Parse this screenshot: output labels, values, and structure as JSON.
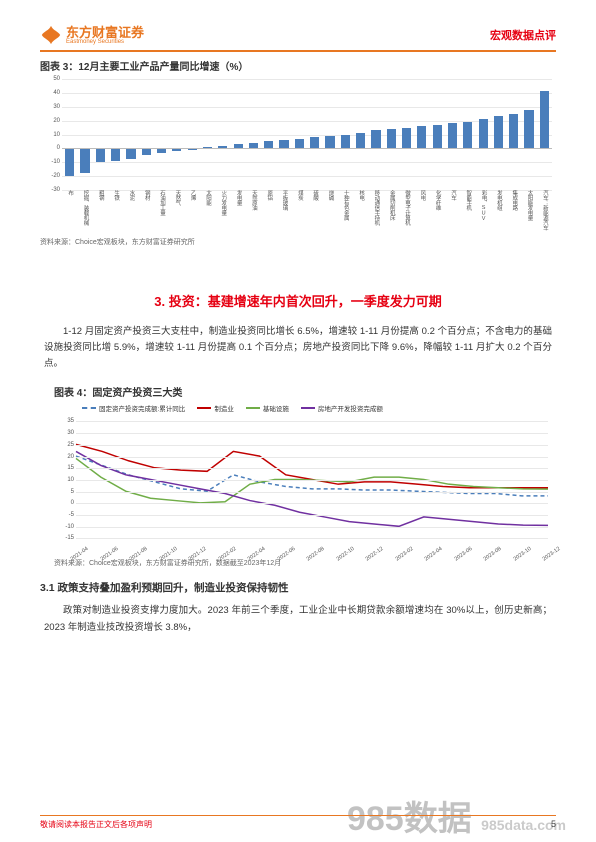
{
  "header": {
    "logo_cn": "东方财富证券",
    "logo_en": "Eastmoney Securities",
    "right": "宏观数据点评"
  },
  "chart3": {
    "title": "图表 3：12月主要工业产品产量同比增速（%）",
    "source": "资料来源：Choice宏观板块，东方财富证券研究所",
    "ylim": [
      -30,
      50
    ],
    "ytick_step": 10,
    "bar_color": "#4a7ebb",
    "grid_color": "#e8e8e8",
    "categories": [
      "布",
      "挖掘、装载机械",
      "粗钢",
      "生铁",
      "水泥",
      "钢材",
      "石油加工量",
      "天然气",
      "乙烯",
      "太阳能",
      "火力发电量",
      "发电量",
      "天然原油",
      "原铝",
      "平板玻璃",
      "煤炭",
      "硫酸",
      "烧碱",
      "十种有色金属",
      "核电",
      "移动通信手持机",
      "金属切削机床",
      "微型电子计算机",
      "风电",
      "化学纤维",
      "汽车",
      "智能手机",
      "彩电、SUV",
      "发电机组",
      "集成电路",
      "太阳能发电量",
      "汽车：新能源汽车"
    ],
    "values": [
      -20,
      -18,
      -10,
      -9,
      -8,
      -5,
      -3,
      -2,
      -1,
      1,
      2,
      3,
      4,
      5,
      6,
      7,
      8,
      9,
      10,
      11,
      13,
      14,
      15,
      16,
      17,
      18,
      19,
      21,
      23,
      25,
      28,
      41
    ]
  },
  "section3": {
    "heading": "3. 投资：基建增速年内首次回升，一季度发力可期",
    "para1": "1-12 月固定资产投资三大支柱中，制造业投资同比增长 6.5%，增速较 1-11 月份提高 0.2 个百分点；不含电力的基础设施投资同比增 5.9%，增速较 1-11 月份提高 0.1 个百分点；房地产投资同比下降 9.6%，降幅较 1-11 月扩大 0.2 个百分点。"
  },
  "chart4": {
    "title": "图表 4：固定资产投资三大类",
    "source": "资料来源：Choice宏观板块，东方财富证券研究所，数据截至2023年12月",
    "ylim": [
      -15,
      35
    ],
    "ytick_step": 5,
    "grid_color": "#e8e8e8",
    "legend": [
      {
        "label": "固定资产投资完成额:累计同比",
        "color": "#4a7ebb",
        "dash": "4,3"
      },
      {
        "label": "制造业",
        "color": "#c00000",
        "dash": ""
      },
      {
        "label": "基础设施",
        "color": "#70ad47",
        "dash": ""
      },
      {
        "label": "房地产开发投资完成额",
        "color": "#7030a0",
        "dash": ""
      }
    ],
    "x_labels": [
      "2021-04",
      "2021-06",
      "2021-08",
      "2021-10",
      "2021-12",
      "2022-02",
      "2022-04",
      "2022-06",
      "2022-08",
      "2022-10",
      "2022-12",
      "2023-02",
      "2023-04",
      "2023-06",
      "2023-08",
      "2023-10",
      "2023-12"
    ],
    "series": {
      "fixed": [
        20,
        16,
        12,
        9,
        6,
        5,
        12,
        9,
        7,
        6,
        6,
        5.5,
        5.5,
        5,
        4.5,
        4,
        4,
        3,
        3
      ],
      "mfg": [
        25,
        22,
        18,
        15,
        14,
        13.5,
        22,
        20,
        12,
        10,
        8,
        9,
        9,
        8,
        7,
        6.5,
        6.5,
        6.5,
        6.5
      ],
      "infra": [
        19,
        11,
        5,
        2,
        1,
        0,
        0.5,
        8,
        10,
        10,
        9.5,
        9,
        11,
        11,
        10,
        8,
        7,
        6.5,
        6,
        5.9
      ],
      "realestate": [
        22,
        16,
        12,
        10,
        8,
        6,
        4,
        1,
        -1,
        -4,
        -6,
        -8,
        -9,
        -10,
        -6,
        -7,
        -8,
        -9,
        -9.5,
        -9.6
      ]
    }
  },
  "section31": {
    "heading": "3.1 政策支持叠加盈利预期回升，制造业投资保持韧性",
    "para": "政策对制造业投资支撑力度加大。2023 年前三个季度，工业企业中长期贷款余额增速均在 30%以上，创历史新高；2023 年制造业技改投资增长 3.8%，"
  },
  "footer": {
    "left": "敬请阅读本报告正文后各项声明",
    "page": "5",
    "wm1": "985数据",
    "wm2": "985data.com"
  }
}
